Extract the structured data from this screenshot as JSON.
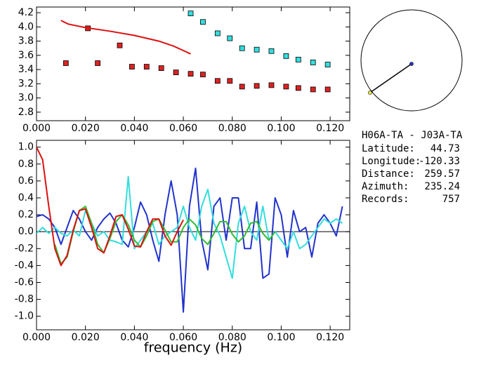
{
  "chart_data": [
    {
      "type": "scatter",
      "xlim": [
        0,
        0.128
      ],
      "ylim": [
        2.68,
        4.28
      ],
      "xticks": [
        {
          "value": 0,
          "label": "0.000"
        },
        {
          "value": 0.02,
          "label": "0.020"
        },
        {
          "value": 0.04,
          "label": "0.040"
        },
        {
          "value": 0.06,
          "label": "0.060"
        },
        {
          "value": 0.08,
          "label": "0.080"
        },
        {
          "value": 0.1,
          "label": "0.100"
        },
        {
          "value": 0.12,
          "label": "0.120"
        }
      ],
      "yticks": [
        2.8,
        3.2,
        {
          "value": 3.0,
          "label": "3.0"
        },
        3.4,
        3.6,
        3.8,
        {
          "value": 4.0,
          "label": "4.0"
        },
        4.2
      ],
      "series": [
        {
          "style": "markers",
          "color": "#dd2222",
          "x": [
            0.012,
            0.021,
            0.025,
            0.034,
            0.039,
            0.045,
            0.051,
            0.057,
            0.063,
            0.068,
            0.074,
            0.079,
            0.084,
            0.09,
            0.096,
            0.102,
            0.107,
            0.113,
            0.119
          ],
          "values": [
            3.49,
            3.98,
            3.49,
            3.74,
            3.44,
            3.44,
            3.42,
            3.36,
            3.34,
            3.33,
            3.24,
            3.24,
            3.16,
            3.17,
            3.18,
            3.16,
            3.14,
            3.12,
            3.12
          ]
        },
        {
          "style": "markers",
          "color": "#33dddd",
          "x": [
            0.063,
            0.068,
            0.074,
            0.079,
            0.084,
            0.09,
            0.096,
            0.102,
            0.107,
            0.113,
            0.119
          ],
          "values": [
            4.19,
            4.07,
            3.91,
            3.84,
            3.7,
            3.68,
            3.66,
            3.59,
            3.54,
            3.5,
            3.47
          ]
        },
        {
          "style": "line",
          "color": "#dd1111",
          "x": [
            0.01,
            0.013,
            0.02,
            0.03,
            0.04,
            0.05,
            0.056,
            0.063
          ],
          "values": [
            4.09,
            4.04,
            3.99,
            3.94,
            3.88,
            3.8,
            3.73,
            3.62
          ]
        }
      ]
    },
    {
      "type": "line",
      "xlabel": "frequency (Hz)",
      "zero_line": true,
      "xlim": [
        0,
        0.128
      ],
      "ylim": [
        -1.16,
        1.08
      ],
      "xticks": [
        {
          "value": 0,
          "label": "0.000"
        },
        {
          "value": 0.02,
          "label": "0.020"
        },
        {
          "value": 0.04,
          "label": "0.040"
        },
        {
          "value": 0.06,
          "label": "0.060"
        },
        {
          "value": 0.08,
          "label": "0.080"
        },
        {
          "value": 0.1,
          "label": "0.100"
        },
        {
          "value": 0.12,
          "label": "0.120"
        }
      ],
      "yticks": [
        {
          "value": -1.0,
          "label": "-1.0"
        },
        -0.8,
        -0.6,
        -0.4,
        -0.2,
        {
          "value": 0,
          "label": "0.0"
        },
        0.2,
        0.4,
        0.6,
        0.8,
        {
          "value": 1.0,
          "label": "1.0"
        }
      ],
      "x": [
        0,
        0.0025,
        0.005,
        0.0075,
        0.01,
        0.0125,
        0.015,
        0.0175,
        0.02,
        0.0225,
        0.025,
        0.0275,
        0.03,
        0.0325,
        0.035,
        0.0375,
        0.04,
        0.0425,
        0.045,
        0.0475,
        0.05,
        0.0525,
        0.055,
        0.0575,
        0.06,
        0.0625,
        0.065,
        0.0675,
        0.07,
        0.0725,
        0.075,
        0.0775,
        0.08,
        0.0825,
        0.085,
        0.0875,
        0.09,
        0.0925,
        0.095,
        0.0975,
        0.1,
        0.1025,
        0.105,
        0.1075,
        0.11,
        0.1125,
        0.115,
        0.1175,
        0.12,
        0.1225,
        0.125
      ],
      "series": [
        {
          "color": "#2233cc",
          "values": [
            0.18,
            0.2,
            0.15,
            0.05,
            -0.15,
            0.05,
            0.25,
            0.15,
            0.0,
            -0.1,
            0.05,
            0.15,
            0.22,
            0.1,
            -0.1,
            -0.18,
            0.05,
            0.35,
            0.2,
            -0.1,
            -0.35,
            0.2,
            0.6,
            0.2,
            -0.95,
            0.3,
            0.75,
            -0.1,
            -0.45,
            0.3,
            0.4,
            -0.1,
            0.4,
            0.4,
            -0.2,
            -0.2,
            0.35,
            -0.55,
            -0.5,
            0.4,
            0.2,
            -0.3,
            0.25,
            0.0,
            0.05,
            -0.3,
            0.1,
            0.2,
            0.1,
            -0.05,
            0.3
          ]
        },
        {
          "color": "#33dddd",
          "values": [
            -0.02,
            0.05,
            -0.02,
            0.05,
            -0.02,
            -0.05,
            0.02,
            -0.05,
            0.25,
            0.1,
            -0.05,
            0.0,
            -0.1,
            -0.12,
            -0.15,
            0.65,
            -0.2,
            -0.1,
            0.0,
            0.1,
            -0.15,
            -0.05,
            0.0,
            0.05,
            0.3,
            0.05,
            -0.1,
            0.3,
            0.5,
            0.1,
            -0.05,
            -0.3,
            -0.55,
            0.1,
            0.3,
            0.0,
            -0.1,
            0.3,
            -0.1,
            0.0,
            -0.1,
            -0.2,
            0.0,
            -0.2,
            -0.15,
            -0.05,
            0.05,
            0.15,
            0.1,
            0.15,
            0.1
          ]
        },
        {
          "color": "#33bb33",
          "values": [
            null,
            null,
            null,
            -0.15,
            -0.38,
            -0.3,
            0.0,
            0.25,
            0.3,
            0.1,
            -0.15,
            -0.25,
            -0.08,
            0.12,
            0.2,
            0.08,
            -0.1,
            -0.18,
            -0.05,
            0.12,
            0.15,
            0.02,
            -0.12,
            -0.12,
            0.05,
            0.15,
            0.08,
            -0.08,
            -0.15,
            -0.02,
            0.12,
            0.12,
            -0.03,
            -0.12,
            -0.05,
            0.1,
            0.12,
            -0.02,
            -0.1,
            0.0,
            null,
            null,
            null,
            null,
            null,
            null,
            null,
            null,
            null,
            null,
            null
          ]
        },
        {
          "color": "#dd1111",
          "values": [
            1.0,
            0.85,
            0.3,
            -0.2,
            -0.4,
            -0.28,
            0.02,
            0.25,
            0.27,
            0.05,
            -0.2,
            -0.25,
            -0.05,
            0.18,
            0.2,
            0.03,
            -0.17,
            -0.18,
            0.0,
            0.15,
            0.15,
            -0.05,
            -0.16,
            0.0,
            0.14,
            null,
            null,
            null,
            null,
            null,
            null,
            null,
            null,
            null,
            null,
            null,
            null,
            null,
            null,
            null,
            null,
            null,
            null,
            null,
            null,
            null,
            null,
            null,
            null,
            null,
            null
          ]
        }
      ]
    }
  ],
  "info": {
    "pair": "H06A-TA - J03A-TA",
    "fields": [
      {
        "label": "Latitude:",
        "value": 44.73
      },
      {
        "label": "Longitude:",
        "value": -120.33
      },
      {
        "label": "Distance:",
        "value": 259.57
      },
      {
        "label": "Azimuth:",
        "value": 235.24
      },
      {
        "label": "Records:",
        "value": 757
      }
    ]
  }
}
